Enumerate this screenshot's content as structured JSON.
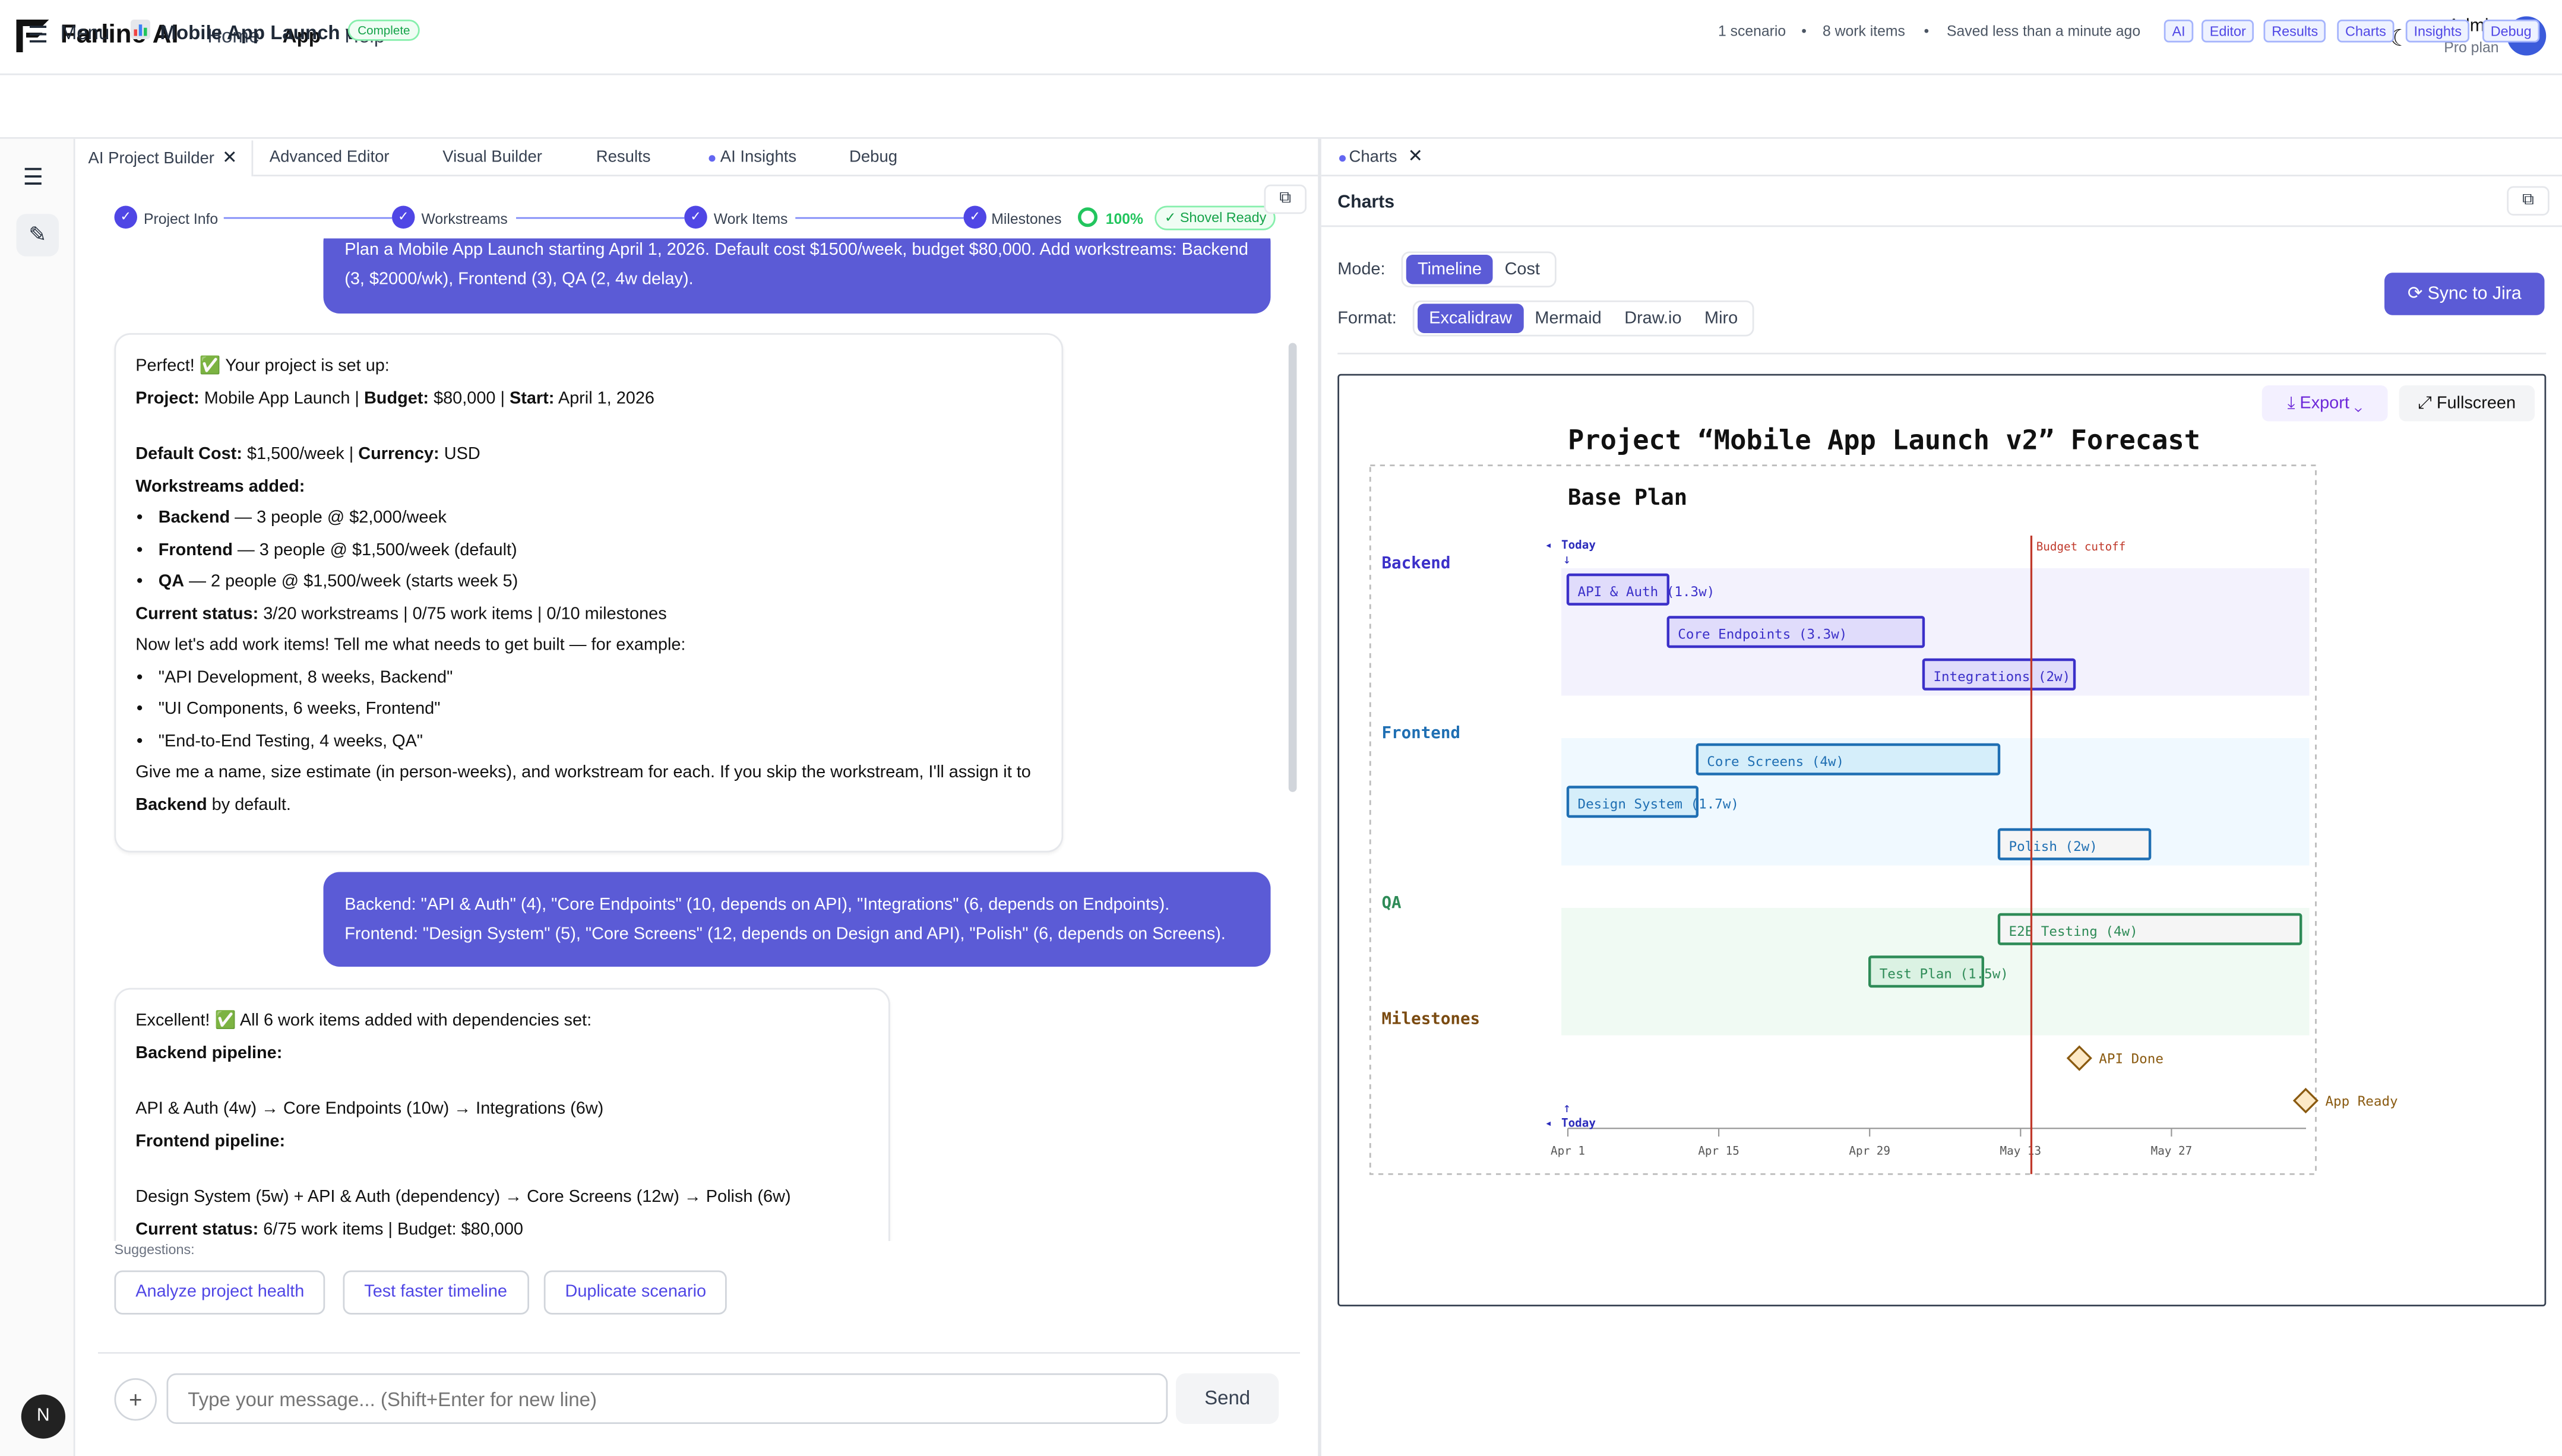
{
  "app": {
    "brand": "Farline AI"
  },
  "nav": {
    "home": "Home",
    "app": "App",
    "help": "Help"
  },
  "user": {
    "name": "Admin",
    "plan": "Pro plan",
    "initials": "AD"
  },
  "project": {
    "menu_label": "Menu",
    "title": "Mobile App Launch v2",
    "status": "Complete",
    "meta": {
      "scenarios": "1 scenario",
      "work_items": "8 work items",
      "saved": "Saved less than a minute ago"
    },
    "quick_links": [
      "AI",
      "Editor",
      "Results",
      "Charts",
      "Insights",
      "Debug"
    ]
  },
  "left_tabs": {
    "ai_builder": "AI Project Builder",
    "advanced": "Advanced Editor",
    "visual": "Visual Builder",
    "results": "Results",
    "insights": "AI Insights",
    "debug": "Debug"
  },
  "progress": {
    "steps": [
      "Project Info",
      "Workstreams",
      "Work Items",
      "Milestones"
    ],
    "percent": "100%",
    "badge": "✓ Shovel Ready"
  },
  "chat": {
    "user1": "Plan a Mobile App Launch starting April 1, 2026. Default cost $1500/week, budget $80,000. Add workstreams: Backend (3, $2000/wk), Frontend (3), QA (2, 4w delay).",
    "a1": {
      "intro": "Perfect! ✅ Your project is set up:",
      "proj_k": "Project:",
      "proj_v": " Mobile App Launch | ",
      "budget_k": "Budget:",
      "budget_v": " $80,000 | ",
      "start_k": "Start:",
      "start_v": " April 1, 2026",
      "cost_k": "Default Cost:",
      "cost_v": " $1,500/week | ",
      "cur_k": "Currency:",
      "cur_v": " USD",
      "ws_title": "Workstreams added:",
      "ws1_k": "Backend",
      "ws1_v": " — 3 people @ $2,000/week",
      "ws2_k": "Frontend",
      "ws2_v": " — 3 people @ $1,500/week (default)",
      "ws3_k": "QA",
      "ws3_v": " — 2 people @ $1,500/week (starts week 5)",
      "status_k": "Current status:",
      "status_v": " 3/20 workstreams | 0/75 work items | 0/10 milestones",
      "prompt": "Now let's add work items! Tell me what needs to get built — for example:",
      "ex1": "\"API Development, 8 weeks, Backend\"",
      "ex2": "\"UI Components, 6 weeks, Frontend\"",
      "ex3": "\"End-to-End Testing, 4 weeks, QA\"",
      "give": "Give me a name, size estimate (in person-weeks), and workstream for each. If you skip the workstream, I'll assign it to ",
      "give_b": "Backend",
      "give_end": " by default."
    },
    "user2_l1": "Backend: \"API & Auth\" (4), \"Core Endpoints\" (10, depends on API), \"Integrations\" (6, depends on Endpoints).",
    "user2_l2": "Frontend: \"Design System\" (5), \"Core Screens\" (12, depends on Design and API), \"Polish\" (6, depends on Screens).",
    "a2": {
      "intro": "Excellent! ✅ All 6 work items added with dependencies set:",
      "be_title": "Backend pipeline:",
      "be": "API & Auth (4w) → Core Endpoints (10w) → Integrations (6w)",
      "fe_title": "Frontend pipeline:",
      "fe": "Design System (5w) + API & Auth (dependency) → Core Screens (12w) → Polish (6w)",
      "status_k": "Current status:",
      "status_v": " 6/75 work items | Budget: $80,000"
    }
  },
  "suggestions": {
    "label": "Suggestions:",
    "items": [
      "Analyze project health",
      "Test faster timeline",
      "Duplicate scenario"
    ]
  },
  "composer": {
    "placeholder": "Type your message... (Shift+Enter for new line)",
    "send": "Send"
  },
  "charts_panel": {
    "tab": "Charts",
    "title": "Charts",
    "mode_label": "Mode:",
    "modes": [
      "Timeline",
      "Cost"
    ],
    "mode_selected": "Timeline",
    "format_label": "Format:",
    "formats": [
      "Excalidraw",
      "Mermaid",
      "Draw.io",
      "Miro"
    ],
    "format_selected": "Excalidraw",
    "sync": "Sync to Jira",
    "export": "Export",
    "fullscreen": "Fullscreen"
  },
  "chart_data": {
    "type": "gantt",
    "title": "Project “Mobile App Launch v2” Forecast",
    "subtitle": "Base Plan",
    "x_ticks": [
      "Apr 1",
      "Apr 15",
      "Apr 29",
      "May 13",
      "May 27"
    ],
    "today_label": "Today",
    "budget_label": "Budget cutoff",
    "budget_cutoff_day": 43,
    "groups": [
      {
        "name": "Backend",
        "color": "#3b30c9",
        "fill": "#f3f2fd",
        "bar_fill": "#e0dcfb",
        "items": [
          {
            "label": "API & Auth (1.3w)",
            "start": 0,
            "end": 9.3
          },
          {
            "label": "Core Endpoints (3.3w)",
            "start": 9.3,
            "end": 33
          },
          {
            "label": "Integrations (2w)",
            "start": 33,
            "end": 47
          }
        ]
      },
      {
        "name": "Frontend",
        "color": "#1f6fb3",
        "fill": "#f0f9ff",
        "bar_fill": "#d5eefa",
        "items": [
          {
            "label": "Core Screens (4w)",
            "start": 12,
            "end": 40
          },
          {
            "label": "Design System (1.7w)",
            "start": 0,
            "end": 12
          },
          {
            "label": "Polish (2w)",
            "start": 40,
            "end": 54
          }
        ]
      },
      {
        "name": "QA",
        "color": "#2e8b57",
        "fill": "#f0faf3",
        "bar_fill": "#dbf2e3",
        "items": [
          {
            "label": "E2E Testing (4w)",
            "start": 40,
            "end": 68
          },
          {
            "label": "Test Plan (1.5w)",
            "start": 28,
            "end": 38.5
          }
        ]
      }
    ],
    "milestones_title": "Milestones",
    "milestones": [
      {
        "label": "API Done",
        "day": 47
      },
      {
        "label": "App Ready",
        "day": 68
      }
    ]
  }
}
